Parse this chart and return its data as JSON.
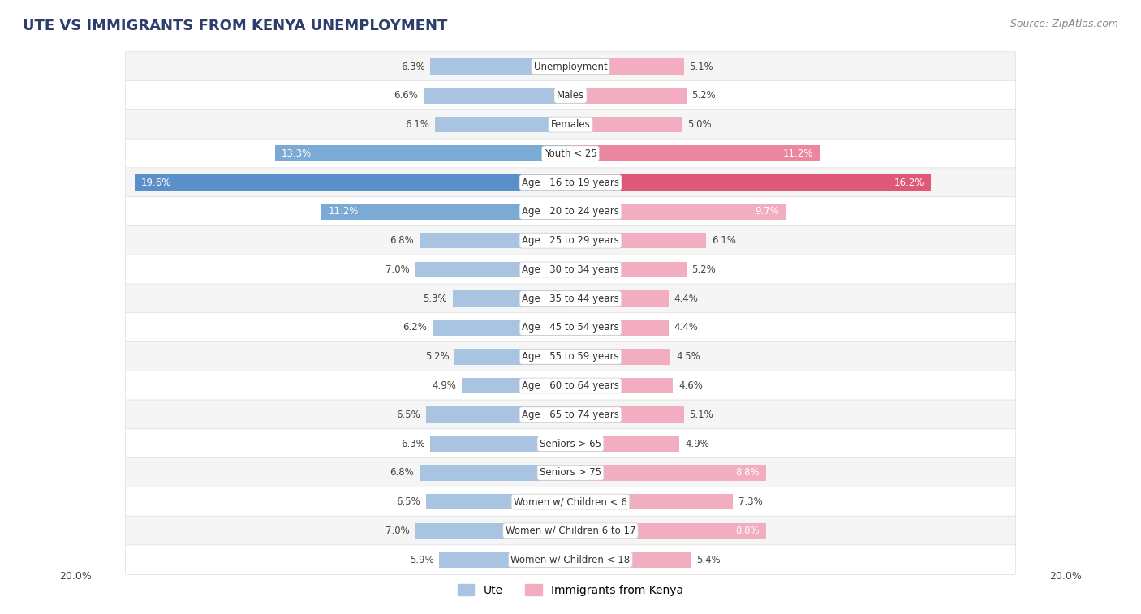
{
  "title": "UTE VS IMMIGRANTS FROM KENYA UNEMPLOYMENT",
  "source": "Source: ZipAtlas.com",
  "categories": [
    "Unemployment",
    "Males",
    "Females",
    "Youth < 25",
    "Age | 16 to 19 years",
    "Age | 20 to 24 years",
    "Age | 25 to 29 years",
    "Age | 30 to 34 years",
    "Age | 35 to 44 years",
    "Age | 45 to 54 years",
    "Age | 55 to 59 years",
    "Age | 60 to 64 years",
    "Age | 65 to 74 years",
    "Seniors > 65",
    "Seniors > 75",
    "Women w/ Children < 6",
    "Women w/ Children 6 to 17",
    "Women w/ Children < 18"
  ],
  "ute_values": [
    6.3,
    6.6,
    6.1,
    13.3,
    19.6,
    11.2,
    6.8,
    7.0,
    5.3,
    6.2,
    5.2,
    4.9,
    6.5,
    6.3,
    6.8,
    6.5,
    7.0,
    5.9
  ],
  "kenya_values": [
    5.1,
    5.2,
    5.0,
    11.2,
    16.2,
    9.7,
    6.1,
    5.2,
    4.4,
    4.4,
    4.5,
    4.6,
    5.1,
    4.9,
    8.8,
    7.3,
    8.8,
    5.4
  ],
  "ute_color_normal": "#a8c4e0",
  "ute_color_medium": "#7baad4",
  "ute_color_large": "#5b8fc9",
  "kenya_color_normal": "#f2aec0",
  "kenya_color_medium": "#ec85a0",
  "kenya_color_large": "#e05878",
  "background_color": "#ffffff",
  "row_color_odd": "#f5f5f5",
  "row_color_even": "#ffffff",
  "xlim": 20.0,
  "bar_height": 0.55,
  "label_threshold_inside": 8.0,
  "xlabel_label": "20.0%",
  "title_color": "#2c3e6b",
  "source_color": "#888888"
}
